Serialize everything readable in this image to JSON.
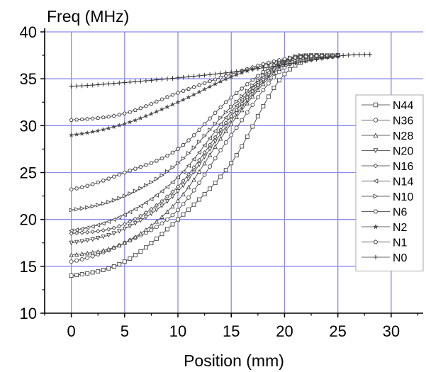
{
  "chart_data": {
    "type": "line",
    "title": "",
    "xlabel": "Position (mm)",
    "ylabel": "Freq (MHz)",
    "xlim": [
      -2.5,
      33
    ],
    "ylim": [
      10,
      40
    ],
    "xticks": [
      "0",
      "5",
      "10",
      "15",
      "20",
      "25",
      "30"
    ],
    "yticks": [
      "10",
      "15",
      "20",
      "25",
      "30",
      "35",
      "40"
    ],
    "grid": true,
    "grid_color": "#8a8af0",
    "line_color": "#555555",
    "legend_position": "right",
    "series": [
      {
        "name": "N44",
        "marker": "square",
        "x": [
          0,
          5,
          10,
          15,
          20,
          25
        ],
        "y": [
          14,
          15.5,
          20,
          26,
          35.5,
          37.5
        ]
      },
      {
        "name": "N36",
        "marker": "circle",
        "x": [
          0,
          5,
          10,
          15,
          20,
          25
        ],
        "y": [
          15.5,
          17.5,
          21,
          29,
          36.2,
          37.4
        ]
      },
      {
        "name": "N28",
        "marker": "triangle-up",
        "x": [
          0,
          5,
          10,
          15,
          20,
          25
        ],
        "y": [
          16.2,
          17.5,
          22,
          30.2,
          36.5,
          37.5
        ]
      },
      {
        "name": "N20",
        "marker": "triangle-down",
        "x": [
          0,
          5,
          10,
          15,
          20,
          25
        ],
        "y": [
          17.5,
          19,
          23,
          30.6,
          36.7,
          37.5
        ]
      },
      {
        "name": "N16",
        "marker": "diamond",
        "x": [
          0,
          5,
          10,
          15,
          20,
          25
        ],
        "y": [
          18.5,
          19.5,
          23.5,
          31,
          36.8,
          37.5
        ]
      },
      {
        "name": "N14",
        "marker": "triangle-left",
        "x": [
          0,
          5,
          10,
          15,
          20,
          25
        ],
        "y": [
          18.8,
          20.5,
          24.5,
          31.5,
          36.9,
          37.5
        ]
      },
      {
        "name": "N10",
        "marker": "triangle-right",
        "x": [
          0,
          5,
          10,
          15,
          20,
          25
        ],
        "y": [
          21,
          22.5,
          26,
          32,
          37,
          37.5
        ]
      },
      {
        "name": "N6",
        "marker": "hexagon",
        "x": [
          0,
          5,
          10,
          15,
          20,
          25
        ],
        "y": [
          23.2,
          25,
          27.5,
          33,
          37,
          37.5
        ]
      },
      {
        "name": "N2",
        "marker": "star",
        "x": [
          0,
          5,
          10,
          15,
          20,
          25
        ],
        "y": [
          29,
          30.2,
          32.5,
          35.2,
          37,
          37.5
        ]
      },
      {
        "name": "N1",
        "marker": "pentagon",
        "x": [
          0,
          5,
          10,
          15,
          20,
          25
        ],
        "y": [
          30.6,
          31.3,
          33.5,
          35.5,
          37.1,
          37.5
        ]
      },
      {
        "name": "N0",
        "marker": "plus",
        "x": [
          0,
          5,
          10,
          15,
          20,
          25,
          28
        ],
        "y": [
          34.2,
          34.6,
          35.1,
          35.7,
          36.5,
          37.4,
          37.6
        ]
      }
    ]
  }
}
